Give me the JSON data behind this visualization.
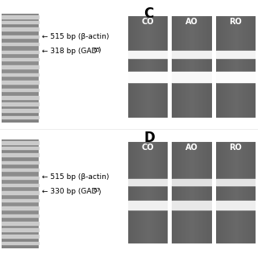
{
  "bg_color": "#ffffff",
  "panel_C_label": "C",
  "panel_D_label": "D",
  "lane_labels_C": [
    "CO",
    "AO",
    "RO"
  ],
  "lane_labels_D": [
    "CO",
    "AO",
    "RO"
  ],
  "annotation_C_top": "← 515 bp (β-actin)",
  "annotation_C_bot": "← 318 bp (GAD",
  "annotation_C_sub": "65",
  "annotation_D_top": "← 515 bp (β-actin)",
  "annotation_D_bot": "← 330 bp (GAD",
  "annotation_D_sub": "67",
  "label_fontsize": 6.5,
  "panel_fontsize": 12,
  "lane_label_fontsize": 7,
  "ladder_bg": 130,
  "gel_bg": 110,
  "band_bright": 240,
  "band_medium": 200
}
